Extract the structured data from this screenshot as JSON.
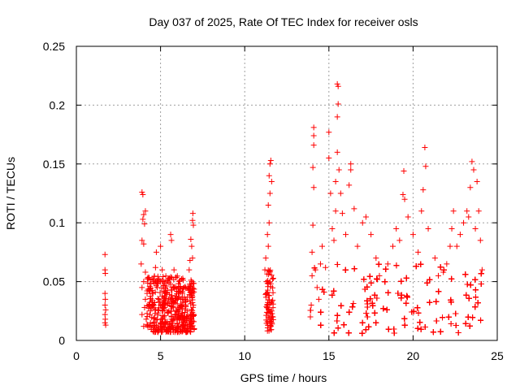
{
  "chart_data": {
    "type": "scatter",
    "title": "Day 037 of 2025, Rate Of TEC Index for receiver osls",
    "xlabel": "GPS time / hours",
    "ylabel": "ROTI / TECUs",
    "xlim": [
      0,
      25
    ],
    "ylim": [
      0,
      0.25
    ],
    "xticks": [
      0,
      5,
      10,
      15,
      20,
      25
    ],
    "xtick_labels": [
      "0",
      "5",
      "10",
      "15",
      "20",
      "25"
    ],
    "yticks": [
      0,
      0.05,
      0.1,
      0.15,
      0.2,
      0.25
    ],
    "ytick_labels": [
      "0",
      "0.05",
      "0.1",
      "0.15",
      "0.2",
      "0.25"
    ],
    "grid": true,
    "marker": "+",
    "color": "#ff0000",
    "series": [
      {
        "name": "ROTI",
        "points": [
          [
            1.7,
            0.073
          ],
          [
            1.7,
            0.06
          ],
          [
            1.72,
            0.057
          ],
          [
            1.7,
            0.04
          ],
          [
            1.72,
            0.035
          ],
          [
            1.7,
            0.03
          ],
          [
            1.74,
            0.026
          ],
          [
            1.7,
            0.022
          ],
          [
            1.72,
            0.018
          ],
          [
            1.7,
            0.015
          ],
          [
            1.74,
            0.013
          ],
          [
            3.9,
            0.126
          ],
          [
            3.95,
            0.124
          ],
          [
            4.0,
            0.107
          ],
          [
            3.95,
            0.103
          ],
          [
            4.05,
            0.099
          ],
          [
            4.1,
            0.11
          ],
          [
            3.9,
            0.085
          ],
          [
            4.0,
            0.082
          ],
          [
            3.85,
            0.065
          ],
          [
            4.1,
            0.058
          ],
          [
            4.0,
            0.05
          ],
          [
            3.9,
            0.045
          ],
          [
            4.2,
            0.04
          ],
          [
            4.1,
            0.035
          ],
          [
            4.05,
            0.028
          ],
          [
            3.9,
            0.022
          ],
          [
            4.15,
            0.018
          ],
          [
            4.0,
            0.012
          ],
          [
            4.3,
            0.03
          ],
          [
            4.4,
            0.025
          ],
          [
            4.5,
            0.04
          ],
          [
            4.6,
            0.03
          ],
          [
            4.7,
            0.062
          ],
          [
            4.8,
            0.045
          ],
          [
            4.75,
            0.075
          ],
          [
            4.9,
            0.035
          ],
          [
            5.0,
            0.08
          ],
          [
            5.1,
            0.06
          ],
          [
            5.2,
            0.05
          ],
          [
            5.3,
            0.04
          ],
          [
            5.4,
            0.03
          ],
          [
            5.5,
            0.025
          ],
          [
            5.6,
            0.09
          ],
          [
            5.65,
            0.085
          ],
          [
            5.8,
            0.06
          ],
          [
            5.9,
            0.045
          ],
          [
            6.0,
            0.035
          ],
          [
            6.2,
            0.03
          ],
          [
            6.3,
            0.04
          ],
          [
            6.4,
            0.045
          ],
          [
            6.5,
            0.035
          ],
          [
            4.4,
            0.015
          ],
          [
            4.6,
            0.012
          ],
          [
            4.8,
            0.018
          ],
          [
            5.0,
            0.014
          ],
          [
            5.2,
            0.02
          ],
          [
            5.4,
            0.016
          ],
          [
            5.6,
            0.012
          ],
          [
            5.8,
            0.018
          ],
          [
            6.0,
            0.014
          ],
          [
            6.2,
            0.02
          ],
          [
            6.4,
            0.016
          ],
          [
            6.6,
            0.012
          ],
          [
            6.8,
            0.018
          ],
          [
            6.7,
            0.06
          ],
          [
            6.75,
            0.068
          ],
          [
            6.8,
            0.086
          ],
          [
            6.85,
            0.08
          ],
          [
            6.9,
            0.102
          ],
          [
            6.92,
            0.108
          ],
          [
            6.95,
            0.098
          ],
          [
            6.9,
            0.07
          ],
          [
            6.85,
            0.05
          ],
          [
            6.9,
            0.04
          ],
          [
            6.95,
            0.03
          ],
          [
            6.9,
            0.022
          ],
          [
            6.85,
            0.015
          ],
          [
            7.0,
            0.01
          ],
          [
            11.2,
            0.06
          ],
          [
            11.25,
            0.07
          ],
          [
            11.3,
            0.04
          ],
          [
            11.35,
            0.09
          ],
          [
            11.4,
            0.115
          ],
          [
            11.45,
            0.14
          ],
          [
            11.5,
            0.15
          ],
          [
            11.55,
            0.153
          ],
          [
            11.6,
            0.135
          ],
          [
            11.5,
            0.125
          ],
          [
            11.45,
            0.1
          ],
          [
            11.4,
            0.08
          ],
          [
            11.3,
            0.05
          ],
          [
            11.35,
            0.03
          ],
          [
            11.4,
            0.02
          ],
          [
            11.5,
            0.015
          ],
          [
            11.55,
            0.012
          ],
          [
            11.6,
            0.025
          ],
          [
            13.9,
            0.02
          ],
          [
            13.95,
            0.03
          ],
          [
            14.0,
            0.055
          ],
          [
            14.0,
            0.075
          ],
          [
            14.05,
            0.098
          ],
          [
            14.1,
            0.13
          ],
          [
            14.05,
            0.147
          ],
          [
            14.1,
            0.166
          ],
          [
            14.1,
            0.174
          ],
          [
            14.1,
            0.181
          ],
          [
            14.2,
            0.06
          ],
          [
            14.3,
            0.045
          ],
          [
            14.4,
            0.035
          ],
          [
            14.5,
            0.065
          ],
          [
            14.6,
            0.08
          ],
          [
            14.8,
            0.062
          ],
          [
            15.0,
            0.155
          ],
          [
            15.0,
            0.177
          ],
          [
            15.1,
            0.125
          ],
          [
            15.2,
            0.095
          ],
          [
            15.3,
            0.085
          ],
          [
            15.4,
            0.11
          ],
          [
            15.4,
            0.135
          ],
          [
            15.5,
            0.16
          ],
          [
            15.5,
            0.19
          ],
          [
            15.55,
            0.201
          ],
          [
            15.5,
            0.218
          ],
          [
            15.55,
            0.216
          ],
          [
            15.6,
            0.145
          ],
          [
            15.7,
            0.125
          ],
          [
            15.8,
            0.108
          ],
          [
            16.0,
            0.09
          ],
          [
            16.2,
            0.132
          ],
          [
            16.3,
            0.15
          ],
          [
            16.3,
            0.145
          ],
          [
            16.5,
            0.112
          ],
          [
            16.7,
            0.08
          ],
          [
            17.0,
            0.1
          ],
          [
            17.2,
            0.105
          ],
          [
            17.5,
            0.09
          ],
          [
            17.8,
            0.07
          ],
          [
            18.0,
            0.055
          ],
          [
            18.5,
            0.065
          ],
          [
            18.8,
            0.08
          ],
          [
            19.0,
            0.095
          ],
          [
            19.2,
            0.085
          ],
          [
            19.4,
            0.124
          ],
          [
            19.45,
            0.144
          ],
          [
            19.5,
            0.12
          ],
          [
            19.7,
            0.105
          ],
          [
            20.0,
            0.09
          ],
          [
            20.3,
            0.075
          ],
          [
            20.5,
            0.11
          ],
          [
            20.6,
            0.128
          ],
          [
            20.7,
            0.164
          ],
          [
            20.75,
            0.148
          ],
          [
            20.9,
            0.095
          ],
          [
            21.3,
            0.07
          ],
          [
            21.5,
            0.055
          ],
          [
            21.8,
            0.058
          ],
          [
            22.0,
            0.065
          ],
          [
            22.2,
            0.08
          ],
          [
            22.3,
            0.095
          ],
          [
            22.4,
            0.11
          ],
          [
            22.6,
            0.08
          ],
          [
            22.8,
            0.09
          ],
          [
            23.0,
            0.1
          ],
          [
            23.2,
            0.11
          ],
          [
            23.3,
            0.105
          ],
          [
            23.4,
            0.13
          ],
          [
            23.5,
            0.152
          ],
          [
            23.6,
            0.145
          ],
          [
            23.7,
            0.095
          ],
          [
            23.8,
            0.135
          ],
          [
            23.9,
            0.11
          ],
          [
            24.0,
            0.085
          ],
          [
            24.1,
            0.06
          ]
        ]
      }
    ],
    "dense_bands": [
      {
        "x_start": 4.2,
        "x_end": 7.0,
        "y_low": 0.007,
        "y_high": 0.055,
        "count": 420
      },
      {
        "x_start": 11.2,
        "x_end": 11.7,
        "y_low": 0.008,
        "y_high": 0.06,
        "count": 70
      },
      {
        "x_start": 13.9,
        "x_end": 24.1,
        "y_low": 0.006,
        "y_high": 0.065,
        "count": 1500
      }
    ]
  }
}
